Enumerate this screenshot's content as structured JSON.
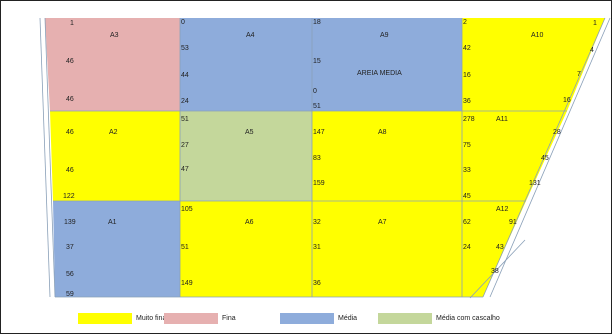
{
  "colors": {
    "muito_fina": "#ffff00",
    "fina": "#e6b0b0",
    "media": "#8eacdb",
    "media_com_cascalho": "#c4d79b",
    "grid_line": "#8aa0b8"
  },
  "blocks": [
    {
      "id": "A3",
      "class": "fina",
      "values": [
        "1",
        "46",
        "46"
      ]
    },
    {
      "id": "A4",
      "class": "media",
      "values": [
        "0",
        "53",
        "44",
        "24"
      ]
    },
    {
      "id": "A9",
      "class": "media",
      "values": [
        "18",
        "15",
        "0",
        "51"
      ],
      "note": "AREIA MEDIA"
    },
    {
      "id": "A10",
      "class": "muito_fina",
      "values": [
        "2",
        "42",
        "16",
        "36",
        "1",
        "4",
        "7",
        "16"
      ]
    },
    {
      "id": "A2",
      "class": "muito_fina",
      "values": [
        "46",
        "46",
        "122"
      ]
    },
    {
      "id": "A5",
      "class": "media_com_cascalho",
      "values": [
        "51",
        "27",
        "47"
      ]
    },
    {
      "id": "A8",
      "class": "muito_fina",
      "values": [
        "147",
        "83",
        "159"
      ]
    },
    {
      "id": "A11",
      "class": "muito_fina",
      "values": [
        "278",
        "75",
        "33",
        "45",
        "28",
        "45",
        "131"
      ]
    },
    {
      "id": "A1",
      "class": "media",
      "values": [
        "139",
        "37",
        "56",
        "59"
      ]
    },
    {
      "id": "A6",
      "class": "muito_fina",
      "values": [
        "105",
        "51",
        "149"
      ]
    },
    {
      "id": "A7",
      "class": "muito_fina",
      "values": [
        "32",
        "31",
        "36"
      ]
    },
    {
      "id": "A12",
      "class": "muito_fina",
      "values": [
        "62",
        "24",
        "91",
        "43",
        "38"
      ]
    }
  ],
  "legend": [
    {
      "label": "Muito fina",
      "class": "muito_fina"
    },
    {
      "label": "Fina",
      "class": "fina"
    },
    {
      "label": "Média",
      "class": "media"
    },
    {
      "label": "Média com cascalho",
      "class": "media_com_cascalho"
    }
  ]
}
